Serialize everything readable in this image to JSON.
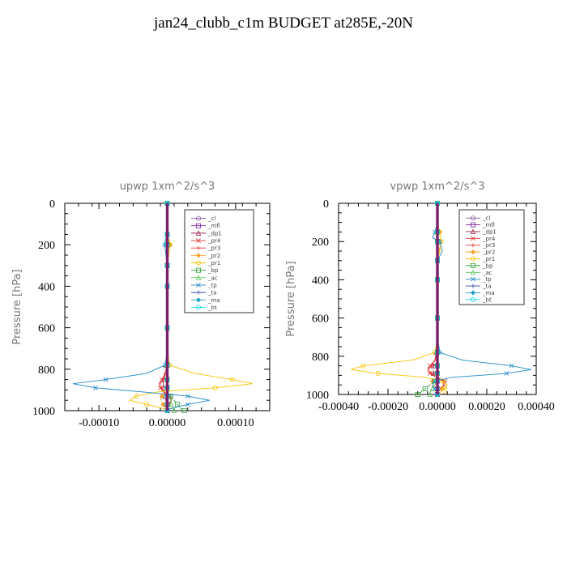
{
  "title": "jan24_clubb_c1m  BUDGET at285E,-20N",
  "chart_data": [
    {
      "type": "line",
      "title": "upwp   1xm^2/s^3",
      "ylabel": "Pressure [hPa]",
      "xlabel": "",
      "xlim": [
        -0.00015,
        0.00015
      ],
      "ylim": [
        1000,
        0
      ],
      "xticks": [
        -0.0001,
        0.0,
        0.0001
      ],
      "xtick_labels": [
        "-0.00010",
        "0.00000",
        "0.00010"
      ],
      "yticks": [
        0,
        200,
        400,
        600,
        800,
        1000
      ],
      "ytick_labels": [
        "0",
        "200",
        "400",
        "600",
        "800",
        "1000"
      ],
      "legend_position": "top-right",
      "pressure_levels": [
        0,
        100,
        150,
        180,
        200,
        250,
        300,
        350,
        400,
        500,
        600,
        700,
        780,
        820,
        850,
        870,
        890,
        910,
        930,
        950,
        970,
        990,
        1000
      ],
      "series": [
        {
          "name": "_cl",
          "color": "#8a58a0",
          "values": [
            0,
            0,
            0,
            0,
            0,
            0,
            0,
            0,
            0,
            0,
            0,
            0,
            0,
            0,
            0,
            0,
            0,
            0,
            0,
            0,
            0,
            0,
            0
          ]
        },
        {
          "name": "_mfl",
          "color": "#7b1fa2",
          "values": [
            0,
            0,
            0,
            0,
            0,
            0,
            0,
            0,
            0,
            0,
            0,
            0,
            0,
            0,
            0,
            0,
            0,
            0,
            0,
            0,
            0,
            0,
            0
          ]
        },
        {
          "name": "_dp1",
          "color": "#a0204a",
          "values": [
            0,
            0,
            0,
            0,
            0,
            0,
            0,
            0,
            0,
            0,
            0,
            0,
            -2e-06,
            -4e-06,
            -5e-06,
            -6e-06,
            -5e-06,
            -4e-06,
            -3e-06,
            -2e-06,
            -1e-06,
            0,
            0
          ]
        },
        {
          "name": "_pr4",
          "color": "#d9302f",
          "values": [
            0,
            0,
            0,
            0,
            0,
            0,
            0,
            0,
            0,
            0,
            0,
            0,
            0,
            -3e-06,
            -8e-06,
            -1.2e-05,
            -1e-05,
            -6e-06,
            4e-06,
            6e-06,
            2e-06,
            -1e-06,
            0
          ]
        },
        {
          "name": "_pr3",
          "color": "#e53935",
          "values": [
            0,
            0,
            0,
            0,
            0,
            0,
            0,
            0,
            0,
            0,
            0,
            0,
            0,
            -2e-06,
            -6e-06,
            -1e-05,
            -8e-06,
            -4e-06,
            3e-06,
            5e-06,
            2e-06,
            0,
            0
          ]
        },
        {
          "name": "_pr2",
          "color": "#f2a12e",
          "values": [
            0,
            0,
            0,
            3e-06,
            4e-06,
            2e-06,
            0,
            0,
            0,
            0,
            0,
            0,
            0,
            0,
            0,
            0,
            0,
            0,
            -8e-06,
            -1e-05,
            -6e-06,
            -2e-06,
            0
          ]
        },
        {
          "name": "_pr1",
          "color": "#f5c400",
          "values": [
            0,
            0,
            0,
            2e-06,
            4e-06,
            2e-06,
            0,
            0,
            0,
            0,
            0,
            0,
            3e-06,
            4e-05,
            9.5e-05,
            0.000125,
            7e-05,
            -1.5e-05,
            -4.5e-05,
            -5.5e-05,
            -3e-05,
            -5e-06,
            0
          ]
        },
        {
          "name": "_bp",
          "color": "#2e9e3a",
          "values": [
            0,
            0,
            0,
            0,
            0,
            0,
            0,
            0,
            0,
            0,
            0,
            0,
            0,
            0,
            0,
            0,
            0,
            0,
            5e-06,
            1e-05,
            1.5e-05,
            2e-05,
            2.5e-05
          ]
        },
        {
          "name": "_ac",
          "color": "#59c25c",
          "values": [
            0,
            0,
            0,
            0,
            0,
            0,
            0,
            0,
            0,
            0,
            0,
            0,
            0,
            0,
            0,
            0,
            0,
            0,
            3e-06,
            5e-06,
            6e-06,
            8e-06,
            1e-05
          ]
        },
        {
          "name": "_tp",
          "color": "#1e88c8",
          "values": [
            0,
            0,
            0,
            -3e-06,
            -4e-06,
            -2e-06,
            0,
            0,
            0,
            0,
            0,
            0,
            -3e-06,
            -3e-05,
            -9e-05,
            -0.000138,
            -0.000105,
            -3.5e-05,
            3e-05,
            6.2e-05,
            3e-05,
            5e-06,
            0
          ]
        },
        {
          "name": "_ta",
          "color": "#3949ab",
          "values": [
            0,
            0,
            0,
            0,
            0,
            0,
            0,
            0,
            0,
            0,
            0,
            0,
            0,
            0,
            0,
            0,
            0,
            0,
            0,
            0,
            0,
            0,
            0
          ]
        },
        {
          "name": "_ma",
          "color": "#1aa3c4",
          "values": [
            0,
            0,
            0,
            0,
            0,
            0,
            0,
            0,
            0,
            0,
            0,
            0,
            0,
            0,
            0,
            0,
            0,
            0,
            0,
            0,
            0,
            0,
            0
          ]
        },
        {
          "name": "_bt",
          "color": "#19d6e6",
          "values": [
            0,
            0,
            0,
            0,
            0,
            0,
            0,
            0,
            0,
            0,
            0,
            0,
            0,
            0,
            0,
            0,
            0,
            0,
            0,
            0,
            0,
            0,
            0
          ]
        }
      ]
    },
    {
      "type": "line",
      "title": "vpwp   1xm^2/s^3",
      "ylabel": "Pressure [hPa]",
      "xlabel": "",
      "xlim": [
        -0.0004,
        0.0004
      ],
      "ylim": [
        1000,
        0
      ],
      "xticks": [
        -0.0004,
        -0.0002,
        0.0,
        0.0002,
        0.0004
      ],
      "xtick_labels": [
        "-0.00040",
        "-0.00020",
        "0.00000",
        "0.00020",
        "0.00040"
      ],
      "yticks": [
        0,
        200,
        400,
        600,
        800,
        1000
      ],
      "ytick_labels": [
        "0",
        "200",
        "400",
        "600",
        "800",
        "1000"
      ],
      "legend_position": "top-right",
      "pressure_levels": [
        0,
        100,
        150,
        180,
        200,
        250,
        300,
        350,
        400,
        500,
        600,
        700,
        780,
        820,
        850,
        870,
        890,
        910,
        930,
        950,
        970,
        990,
        1000
      ],
      "series": [
        {
          "name": "_cl",
          "color": "#8a58a0",
          "values": [
            0,
            0,
            0,
            0,
            0,
            0,
            0,
            0,
            0,
            0,
            0,
            0,
            0,
            0,
            0,
            0,
            0,
            0,
            0,
            0,
            0,
            0,
            0
          ]
        },
        {
          "name": "_mfl",
          "color": "#7b1fa2",
          "values": [
            0,
            0,
            0,
            0,
            0,
            0,
            0,
            0,
            0,
            0,
            0,
            0,
            0,
            0,
            0,
            0,
            0,
            0,
            0,
            0,
            0,
            0,
            0
          ]
        },
        {
          "name": "_dp1",
          "color": "#a0204a",
          "values": [
            0,
            0,
            0,
            0,
            0,
            0,
            0,
            0,
            0,
            0,
            0,
            0,
            -5e-06,
            -1e-05,
            -1.5e-05,
            -1.8e-05,
            -1.5e-05,
            -1e-05,
            -5e-06,
            0,
            0,
            0,
            0
          ]
        },
        {
          "name": "_pr4",
          "color": "#d9302f",
          "values": [
            0,
            0,
            0,
            0,
            0,
            0,
            0,
            0,
            0,
            0,
            0,
            0,
            0,
            -1e-05,
            -3e-05,
            -4e-05,
            -3e-05,
            0,
            3e-05,
            3e-05,
            1e-05,
            0,
            0
          ]
        },
        {
          "name": "_pr3",
          "color": "#e53935",
          "values": [
            0,
            0,
            0,
            0,
            0,
            0,
            0,
            0,
            0,
            0,
            0,
            0,
            0,
            -8e-06,
            -2.5e-05,
            -3.5e-05,
            -2.5e-05,
            0,
            2.5e-05,
            2.5e-05,
            8e-06,
            0,
            0
          ]
        },
        {
          "name": "_pr2",
          "color": "#f2a12e",
          "values": [
            0,
            0,
            1e-05,
            1.5e-05,
            1e-05,
            8e-06,
            0,
            0,
            0,
            0,
            0,
            0,
            0,
            0,
            0,
            0,
            0,
            0,
            -2e-05,
            -3e-05,
            2e-05,
            4e-05,
            0
          ]
        },
        {
          "name": "_pr1",
          "color": "#f5c400",
          "values": [
            0,
            0,
            8e-06,
            1.2e-05,
            1.5e-05,
            1e-05,
            0,
            0,
            0,
            0,
            0,
            0,
            -1e-05,
            -0.0001,
            -0.0003,
            -0.00035,
            -0.00024,
            -5e-05,
            2e-05,
            4e-05,
            3e-05,
            1e-05,
            0
          ]
        },
        {
          "name": "_bp",
          "color": "#2e9e3a",
          "values": [
            0,
            0,
            0,
            0,
            0,
            0,
            0,
            0,
            0,
            0,
            0,
            0,
            0,
            0,
            0,
            0,
            0,
            0,
            -1e-05,
            -3e-05,
            -5e-05,
            -7e-05,
            -8e-05
          ]
        },
        {
          "name": "_ac",
          "color": "#59c25c",
          "values": [
            0,
            0,
            0,
            0,
            0,
            0,
            0,
            0,
            0,
            0,
            0,
            0,
            0,
            0,
            0,
            0,
            0,
            0,
            -5e-06,
            -1e-05,
            -2e-05,
            -3e-05,
            -3e-05
          ]
        },
        {
          "name": "_tp",
          "color": "#1e88c8",
          "values": [
            0,
            0,
            -1e-05,
            -2e-05,
            1e-05,
            2e-05,
            0,
            0,
            0,
            0,
            0,
            0,
            1e-05,
            0.0001,
            0.0003,
            0.00038,
            0.00028,
            6e-05,
            -1e-05,
            -2e-05,
            -1e-05,
            0,
            0
          ]
        },
        {
          "name": "_ta",
          "color": "#3949ab",
          "values": [
            0,
            0,
            0,
            0,
            0,
            0,
            0,
            0,
            0,
            0,
            0,
            0,
            0,
            0,
            0,
            0,
            0,
            0,
            0,
            0,
            0,
            0,
            0
          ]
        },
        {
          "name": "_ma",
          "color": "#1aa3c4",
          "values": [
            0,
            0,
            0,
            0,
            0,
            0,
            0,
            0,
            0,
            0,
            0,
            0,
            0,
            0,
            0,
            0,
            0,
            0,
            0,
            0,
            0,
            0,
            0
          ]
        },
        {
          "name": "_bt",
          "color": "#19d6e6",
          "values": [
            0,
            0,
            0,
            0,
            0,
            0,
            0,
            0,
            0,
            0,
            0,
            0,
            0,
            0,
            0,
            0,
            0,
            0,
            0,
            0,
            0,
            0,
            0
          ]
        }
      ]
    }
  ]
}
